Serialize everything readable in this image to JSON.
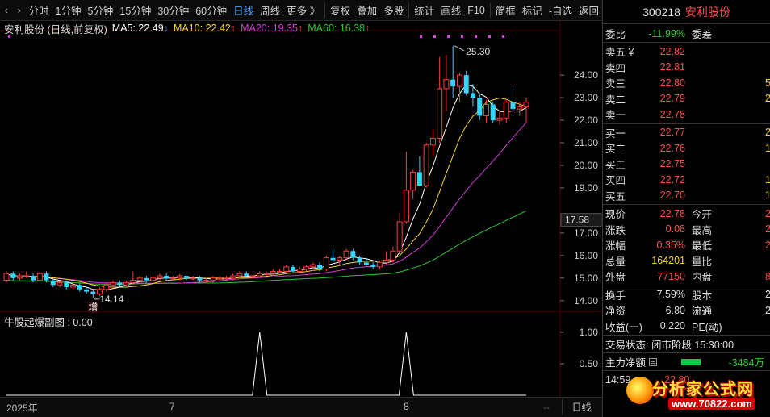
{
  "toolbar": {
    "items": [
      "分时",
      "1分钟",
      "5分钟",
      "15分钟",
      "30分钟",
      "60分钟",
      "日线",
      "周线",
      "更多 》",
      "复权",
      "叠加",
      "多股",
      "统计",
      "画线",
      "F10",
      "简框",
      "标记",
      "-自选",
      "返回"
    ],
    "active_index": 6
  },
  "legend": {
    "stock": "安利股份 (日线,前复权)",
    "ma5": "MA5: 22.49",
    "ma10": "MA10: 22.42",
    "ma20": "MA20: 19.35",
    "ma60": "MA60: 16.38",
    "ma5_arrow": "↓",
    "up_arrow": "↑"
  },
  "chart": {
    "price_ticks": [
      {
        "value": 24,
        "label": "24.00"
      },
      {
        "value": 23,
        "label": "23.00"
      },
      {
        "value": 22,
        "label": "22.00"
      },
      {
        "value": 21,
        "label": "21.00"
      },
      {
        "value": 20,
        "label": "20.00"
      },
      {
        "value": 19,
        "label": "19.00"
      },
      {
        "value": 17,
        "label": "17.00"
      },
      {
        "value": 16,
        "label": "16.00"
      },
      {
        "value": 15,
        "label": "15.00"
      },
      {
        "value": 14,
        "label": "14.00"
      }
    ],
    "current_price_tag": "17.58",
    "high_label": "25.30",
    "low_label": "14.14",
    "marker_text": "增",
    "indicator_ticks": [
      "1.00",
      "0.50"
    ],
    "x_labels": [
      "2025年",
      "7",
      "8"
    ],
    "period": "日线",
    "scroll_mini": "--"
  },
  "chart_data": {
    "type": "candlestick",
    "price_range": [
      13.6,
      25.9
    ],
    "ohlc": [
      [
        14.9,
        15.3,
        14.8,
        15.2
      ],
      [
        15.2,
        15.3,
        14.9,
        15.0
      ],
      [
        15.0,
        15.2,
        14.9,
        15.1
      ],
      [
        15.1,
        15.3,
        15.0,
        15.1
      ],
      [
        15.1,
        15.2,
        14.8,
        14.9
      ],
      [
        14.9,
        15.3,
        14.9,
        15.2
      ],
      [
        15.2,
        15.3,
        14.8,
        14.9
      ],
      [
        14.9,
        15.0,
        14.6,
        14.7
      ],
      [
        14.7,
        14.9,
        14.6,
        14.8
      ],
      [
        14.8,
        14.9,
        14.5,
        14.6
      ],
      [
        14.6,
        14.8,
        14.5,
        14.7
      ],
      [
        14.7,
        14.8,
        14.4,
        14.5
      ],
      [
        14.5,
        14.6,
        14.3,
        14.4
      ],
      [
        14.4,
        14.5,
        14.14,
        14.3
      ],
      [
        14.3,
        14.6,
        14.2,
        14.5
      ],
      [
        14.5,
        14.8,
        14.4,
        14.7
      ],
      [
        14.7,
        14.9,
        14.6,
        14.8
      ],
      [
        14.8,
        14.9,
        14.6,
        14.7
      ],
      [
        14.7,
        14.9,
        14.6,
        14.8
      ],
      [
        14.8,
        15.3,
        14.7,
        14.9
      ],
      [
        14.9,
        15.1,
        14.8,
        15.0
      ],
      [
        15.0,
        15.1,
        14.8,
        14.9
      ],
      [
        14.9,
        15.1,
        14.8,
        15.0
      ],
      [
        15.0,
        15.2,
        14.9,
        15.1
      ],
      [
        15.1,
        15.2,
        14.9,
        15.0
      ],
      [
        15.0,
        15.1,
        14.9,
        15.0
      ],
      [
        15.0,
        15.2,
        14.9,
        15.1
      ],
      [
        15.1,
        15.1,
        14.9,
        15.0
      ],
      [
        15.0,
        15.1,
        14.9,
        15.0
      ],
      [
        15.0,
        15.1,
        14.8,
        14.9
      ],
      [
        14.9,
        15.0,
        14.8,
        14.9
      ],
      [
        14.9,
        15.1,
        14.8,
        15.0
      ],
      [
        15.0,
        15.1,
        14.9,
        15.0
      ],
      [
        15.0,
        15.1,
        14.9,
        15.0
      ],
      [
        15.0,
        15.2,
        14.9,
        15.1
      ],
      [
        15.1,
        15.3,
        15.0,
        15.2
      ],
      [
        15.2,
        15.3,
        15.0,
        15.1
      ],
      [
        15.1,
        15.2,
        15.0,
        15.1
      ],
      [
        15.1,
        15.3,
        15.0,
        15.2
      ],
      [
        15.2,
        15.3,
        15.1,
        15.2
      ],
      [
        15.2,
        15.4,
        15.1,
        15.3
      ],
      [
        15.3,
        15.4,
        15.2,
        15.3
      ],
      [
        15.3,
        15.6,
        15.2,
        15.5
      ],
      [
        15.5,
        15.6,
        15.2,
        15.3
      ],
      [
        15.3,
        15.5,
        15.2,
        15.4
      ],
      [
        15.4,
        15.6,
        15.3,
        15.5
      ],
      [
        15.5,
        15.7,
        15.4,
        15.6
      ],
      [
        15.6,
        15.7,
        15.3,
        15.4
      ],
      [
        15.4,
        16.0,
        15.3,
        15.9
      ],
      [
        15.9,
        16.3,
        15.7,
        15.8
      ],
      [
        15.8,
        16.0,
        15.6,
        15.9
      ],
      [
        15.9,
        16.3,
        15.8,
        16.2
      ],
      [
        16.2,
        16.3,
        15.8,
        15.9
      ],
      [
        15.9,
        16.0,
        15.6,
        15.7
      ],
      [
        15.7,
        15.9,
        15.5,
        15.6
      ],
      [
        15.6,
        15.7,
        15.4,
        15.5
      ],
      [
        15.5,
        15.8,
        15.4,
        15.7
      ],
      [
        15.7,
        16.2,
        15.6,
        15.8
      ],
      [
        15.8,
        16.4,
        15.7,
        16.2
      ],
      [
        16.2,
        17.9,
        16.1,
        17.5
      ],
      [
        17.5,
        20.6,
        17.4,
        18.9
      ],
      [
        18.9,
        19.8,
        18.5,
        19.7
      ],
      [
        19.7,
        20.4,
        19.1,
        19.1
      ],
      [
        19.1,
        21.0,
        19.0,
        20.9
      ],
      [
        20.9,
        21.6,
        20.4,
        21.2
      ],
      [
        21.2,
        24.8,
        21.0,
        23.4
      ],
      [
        23.4,
        24.9,
        22.4,
        23.8
      ],
      [
        23.8,
        25.3,
        23.0,
        23.5
      ],
      [
        23.5,
        24.1,
        22.8,
        24.0
      ],
      [
        24.0,
        24.2,
        23.1,
        23.2
      ],
      [
        23.2,
        23.6,
        22.6,
        23.0
      ],
      [
        23.0,
        23.2,
        22.0,
        22.2
      ],
      [
        22.2,
        22.9,
        21.9,
        22.7
      ],
      [
        22.7,
        22.8,
        21.9,
        22.0
      ],
      [
        22.0,
        22.4,
        21.8,
        22.1
      ],
      [
        22.1,
        22.9,
        21.9,
        22.8
      ],
      [
        22.8,
        23.4,
        22.3,
        22.5
      ],
      [
        22.5,
        22.8,
        22.2,
        22.6
      ],
      [
        22.6,
        23.0,
        21.9,
        22.8
      ]
    ],
    "ma5_end": 22.49,
    "ma10_end": 22.42,
    "ma20_end": 19.35,
    "ma60_end": 16.38,
    "indicator_name": "牛股起爆副图",
    "indicator_value": "0.00",
    "indicator_spikes": [
      38,
      60
    ],
    "indicator_range": [
      0,
      1.1
    ]
  },
  "sub_legend": "牛股起爆副图 : 0.00",
  "right": {
    "code": "300218",
    "name": "安利股份",
    "weibi_label": "委比",
    "weibi_value": "-11.99%",
    "weicha_label": "委差",
    "sells": [
      {
        "label": "卖五 ¥",
        "price": "22.82",
        "vol": ""
      },
      {
        "label": "卖四",
        "price": "22.81",
        "vol": ""
      },
      {
        "label": "卖三",
        "price": "22.80",
        "vol": "5"
      },
      {
        "label": "卖二",
        "price": "22.79",
        "vol": "2"
      },
      {
        "label": "卖一",
        "price": "22.78",
        "vol": ""
      }
    ],
    "buys": [
      {
        "label": "买一",
        "price": "22.77",
        "vol": "2"
      },
      {
        "label": "买二",
        "price": "22.76",
        "vol": "1"
      },
      {
        "label": "买三",
        "price": "22.75",
        "vol": ""
      },
      {
        "label": "买四",
        "price": "22.72",
        "vol": "1"
      },
      {
        "label": "买五",
        "price": "22.70",
        "vol": "1"
      }
    ],
    "quote": [
      {
        "l1": "现价",
        "v1": "22.78",
        "c1": "red",
        "l2": "今开",
        "v2": "2"
      },
      {
        "l1": "涨跌",
        "v1": "0.08",
        "c1": "red",
        "l2": "最高",
        "v2": "2"
      },
      {
        "l1": "涨幅",
        "v1": "0.35%",
        "c1": "red",
        "l2": "最低",
        "v2": "2"
      },
      {
        "l1": "总量",
        "v1": "164201",
        "c1": "yellow",
        "l2": "量比",
        "v2": ""
      },
      {
        "l1": "外盘",
        "v1": "77150",
        "c1": "red",
        "l2": "内盘",
        "v2": "8"
      }
    ],
    "stats": [
      {
        "l1": "换手",
        "v1": "7.59%",
        "l2": "股本",
        "v2": "2"
      },
      {
        "l1": "净资",
        "v1": "6.80",
        "l2": "流通",
        "v2": "2"
      },
      {
        "l1": "收益(一)",
        "v1": "0.220",
        "l2": "PE(动)",
        "v2": ""
      }
    ],
    "trade_status": "交易状态: 闭市阶段 15:30:00",
    "capital_label": "主力净额",
    "capital_value": "-3484万",
    "tick_time": "14:59",
    "tick_price": "22.80"
  },
  "logo": {
    "main": "分析家公式网",
    "url": "www.70822.com"
  },
  "colors": {
    "up": "#ff3b3b",
    "down": "#33d6ff",
    "ma5": "#ffffff",
    "ma10": "#f5d327",
    "ma20": "#d43ad6",
    "ma60": "#2ec52e"
  }
}
